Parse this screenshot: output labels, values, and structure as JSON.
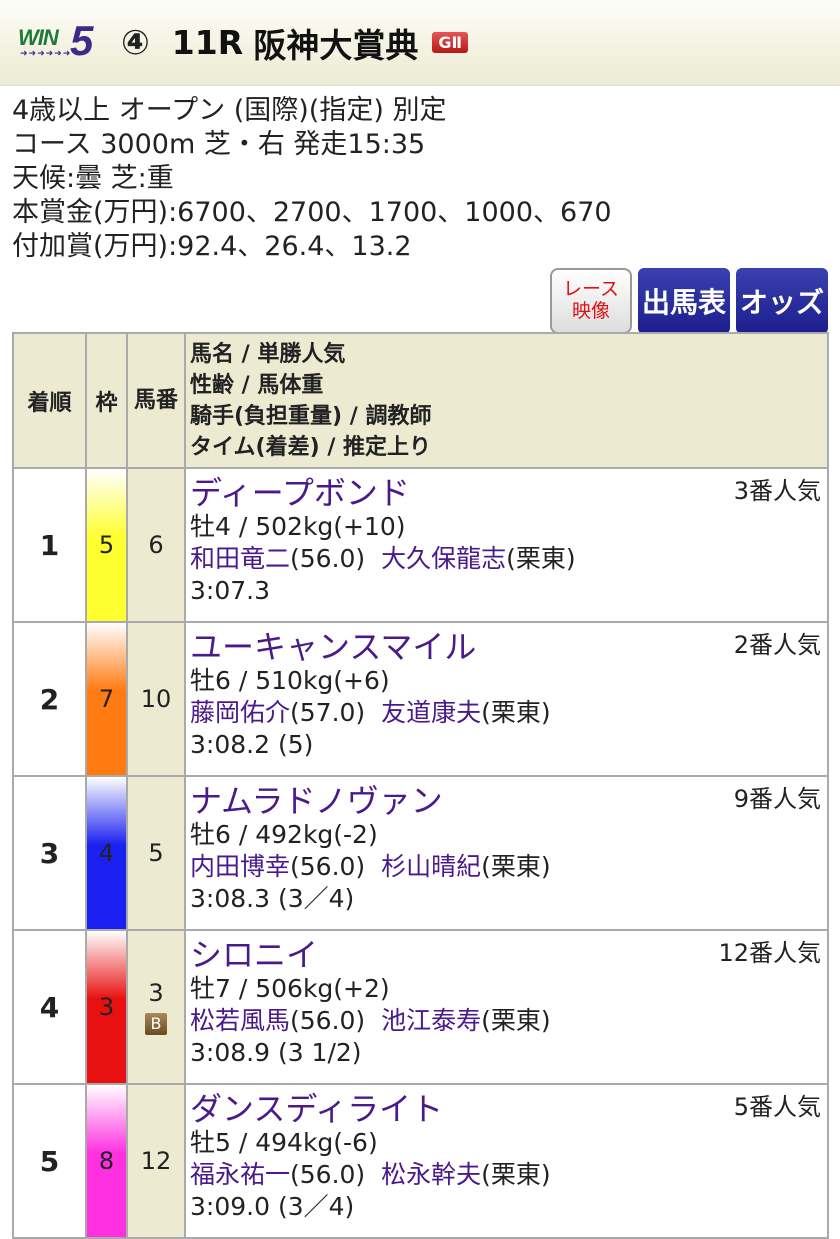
{
  "header": {
    "logo": "WIN5",
    "leg": "④",
    "race": "11R",
    "name": "阪神大賞典",
    "grade": "GⅡ"
  },
  "info": [
    "4歳以上 オープン (国際)(指定) 別定",
    "コース 3000m 芝・右 発走15:35",
    "天候:曇 芝:重",
    "本賞金(万円):6700、2700、1700、1000、670",
    "付加賞(万円):92.4、26.4、13.2"
  ],
  "buttons": {
    "video": "レース映像",
    "video1": "レース",
    "video2": "映像",
    "entries": "出馬表",
    "odds": "オッズ"
  },
  "table": {
    "headers": {
      "rank": "着順",
      "waku": "枠",
      "uma": "馬番",
      "detail": [
        "馬名 / 単勝人気",
        "性齢 / 馬体重",
        "騎手(負担重量) / 調教師",
        "タイム(着差) / 推定上り"
      ]
    },
    "rows": [
      {
        "rank": "1",
        "waku": "5",
        "uma": "6",
        "blinker": "",
        "name": "ディープボンド",
        "pop": "3番人気",
        "sexage": "牡4 / 502kg(+10)",
        "jockey": "和田竜二",
        "weight": "(56.0)",
        "trainer": "大久保龍志",
        "stable": "(栗東)",
        "time": "3:07.3",
        "color": "#ffff30"
      },
      {
        "rank": "2",
        "waku": "7",
        "uma": "10",
        "blinker": "",
        "name": "ユーキャンスマイル",
        "pop": "2番人気",
        "sexage": "牡6 / 510kg(+6)",
        "jockey": "藤岡佑介",
        "weight": "(57.0)",
        "trainer": "友道康夫",
        "stable": "(栗東)",
        "time": "3:08.2 (5)",
        "color": "#ff7a10"
      },
      {
        "rank": "3",
        "waku": "4",
        "uma": "5",
        "blinker": "",
        "name": "ナムラドノヴァン",
        "pop": "9番人気",
        "sexage": "牡6 / 492kg(-2)",
        "jockey": "内田博幸",
        "weight": "(56.0)",
        "trainer": "杉山晴紀",
        "stable": "(栗東)",
        "time": "3:08.3 (3／4)",
        "color": "#1a20f0"
      },
      {
        "rank": "4",
        "waku": "3",
        "uma": "3",
        "blinker": "B",
        "name": "シロニイ",
        "pop": "12番人気",
        "sexage": "牡7 / 506kg(+2)",
        "jockey": "松若風馬",
        "weight": "(56.0)",
        "trainer": "池江泰寿",
        "stable": "(栗東)",
        "time": "3:08.9 (3 1/2)",
        "color": "#e81010"
      },
      {
        "rank": "5",
        "waku": "8",
        "uma": "12",
        "blinker": "",
        "name": "ダンスディライト",
        "pop": "5番人気",
        "sexage": "牡5 / 494kg(-6)",
        "jockey": "福永祐一",
        "weight": "(56.0)",
        "trainer": "松永幹夫",
        "stable": "(栗東)",
        "time": "3:09.0 (3／4)",
        "color": "#ff30e0"
      }
    ]
  }
}
